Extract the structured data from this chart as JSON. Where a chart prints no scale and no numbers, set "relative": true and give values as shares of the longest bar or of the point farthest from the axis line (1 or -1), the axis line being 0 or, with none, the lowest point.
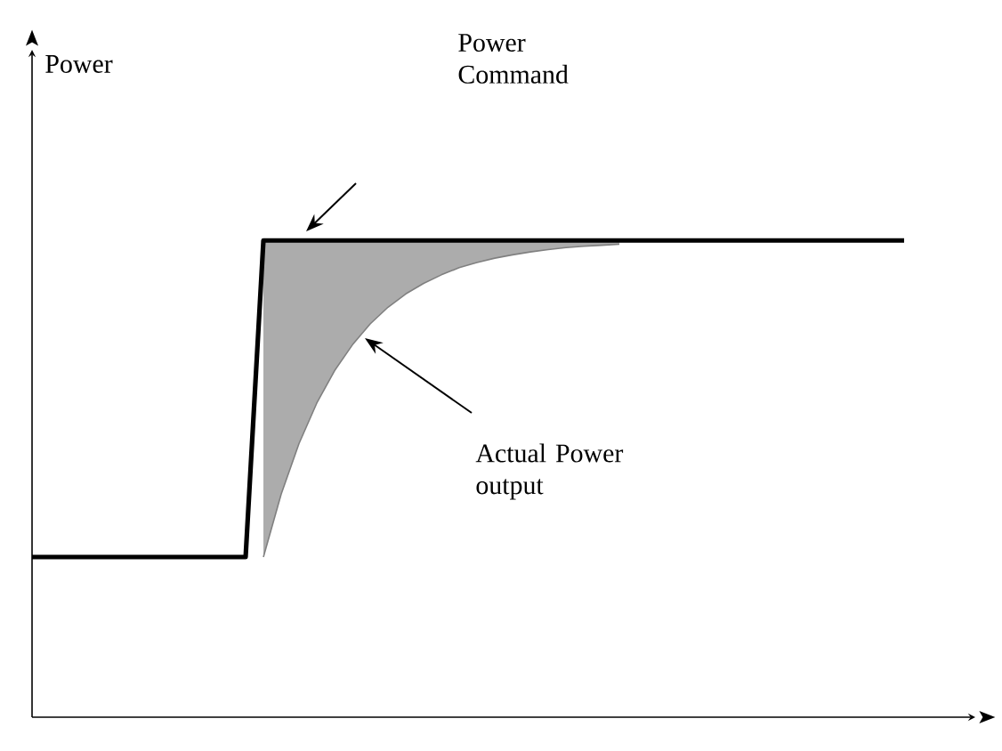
{
  "chart_data": {
    "type": "line",
    "relative": true,
    "tick_labels": false,
    "annotations": [
      "Power",
      "Power Command",
      "Actual Power output"
    ],
    "categories": [
      null,
      null,
      null,
      null,
      null,
      null,
      null,
      null,
      null,
      null,
      null,
      null,
      null,
      null,
      null,
      null,
      null,
      null,
      null,
      null,
      null,
      null,
      null,
      null,
      null,
      null,
      null,
      null,
      null,
      null,
      null,
      null,
      null,
      null,
      null,
      null,
      null,
      null,
      null,
      null,
      null,
      null,
      null,
      null,
      null,
      null,
      null,
      null,
      null,
      null
    ],
    "series": [
      {
        "color": "#000000",
        "values": [
          0.336,
          0.336,
          0.336,
          0.336,
          0.336,
          0.336,
          0.336,
          0.336,
          0.336,
          0.336,
          0.336,
          0.336,
          0.336,
          1,
          1,
          1,
          1,
          1,
          1,
          1,
          1,
          1,
          1,
          1,
          1,
          1,
          1,
          1,
          1,
          1,
          1,
          1,
          1,
          1,
          1,
          1,
          1,
          1,
          1,
          1,
          1,
          1,
          1,
          1,
          1,
          1,
          1,
          1,
          1,
          1
        ]
      },
      {
        "color": "#808080",
        "values": [
          null,
          null,
          null,
          null,
          null,
          null,
          null,
          null,
          null,
          null,
          null,
          null,
          null,
          0.336,
          0.468,
          0.574,
          0.659,
          0.727,
          0.781,
          0.825,
          0.86,
          0.888,
          0.91,
          0.928,
          0.943,
          0.954,
          0.963,
          0.97,
          0.976,
          0.981,
          0.985,
          0.988,
          0.99,
          0.992,
          null,
          null,
          null,
          null,
          null,
          null,
          null,
          null,
          null,
          null,
          null,
          null,
          null,
          null,
          null,
          null
        ],
        "lower": [
          null,
          null,
          null,
          null,
          null,
          null,
          null,
          null,
          null,
          null,
          null,
          null,
          null,
          0.336,
          0.468,
          0.574,
          0.659,
          0.727,
          0.781,
          0.825,
          0.86,
          0.888,
          0.91,
          0.928,
          0.943,
          0.954,
          0.963,
          0.97,
          0.976,
          0.981,
          0.985,
          0.988,
          0.99,
          0.992,
          null,
          null,
          null,
          null,
          null,
          null,
          null,
          null,
          null,
          null,
          null,
          null,
          null,
          null,
          null,
          null
        ],
        "upper": [
          null,
          null,
          null,
          null,
          null,
          null,
          null,
          null,
          null,
          null,
          null,
          null,
          null,
          1,
          1,
          1,
          1,
          1,
          1,
          1,
          1,
          1,
          1,
          1,
          1,
          1,
          1,
          1,
          1,
          1,
          1,
          1,
          1,
          1,
          null,
          null,
          null,
          null,
          null,
          null,
          null,
          null,
          null,
          null,
          null,
          null,
          null,
          null,
          null,
          null
        ]
      }
    ]
  }
}
